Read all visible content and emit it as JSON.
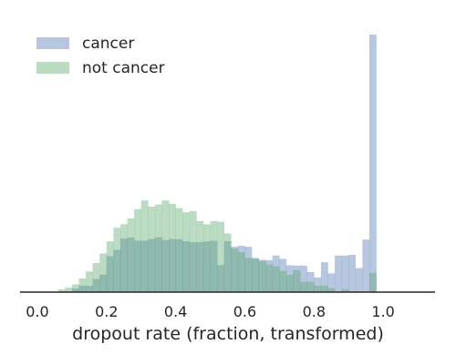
{
  "chart_data": {
    "type": "histogram",
    "title": "",
    "xlabel": "dropout rate (fraction, transformed)",
    "ylabel": "",
    "xlim": [
      -0.05,
      1.15
    ],
    "ylim": [
      0,
      1.0
    ],
    "xticks": [
      "0.0",
      "0.2",
      "0.4",
      "0.6",
      "0.8",
      "1.0"
    ],
    "grid": false,
    "legend_position": "top-left",
    "bin_width": 0.02,
    "bins_start": [
      0.06,
      0.08,
      0.1,
      0.12,
      0.14,
      0.16,
      0.18,
      0.2,
      0.22,
      0.24,
      0.26,
      0.28,
      0.3,
      0.32,
      0.34,
      0.36,
      0.38,
      0.4,
      0.42,
      0.44,
      0.46,
      0.48,
      0.5,
      0.52,
      0.54,
      0.56,
      0.58,
      0.6,
      0.62,
      0.64,
      0.66,
      0.68,
      0.7,
      0.72,
      0.74,
      0.76,
      0.78,
      0.8,
      0.82,
      0.84,
      0.86,
      0.88,
      0.9,
      0.92,
      0.94,
      0.96,
      0.98,
      1.0
    ],
    "series": [
      {
        "name": "cancer",
        "color": "#4c72b0",
        "opacity": 0.4,
        "values": [
          0.0,
          0.0,
          0.014,
          0.025,
          0.025,
          0.051,
          0.068,
          0.14,
          0.164,
          0.208,
          0.212,
          0.2,
          0.2,
          0.206,
          0.213,
          0.202,
          0.206,
          0.205,
          0.197,
          0.194,
          0.194,
          0.197,
          0.2,
          0.105,
          0.198,
          0.176,
          0.18,
          0.176,
          0.133,
          0.126,
          0.124,
          0.142,
          0.129,
          0.104,
          0.103,
          0.103,
          0.078,
          0.057,
          0.116,
          0.073,
          0.142,
          0.142,
          0.145,
          0.093,
          0.204,
          1.0,
          0.0,
          0.0
        ]
      },
      {
        "name": "not cancer",
        "color": "#55a868",
        "opacity": 0.4,
        "values": [
          0.011,
          0.018,
          0.03,
          0.053,
          0.08,
          0.113,
          0.15,
          0.197,
          0.25,
          0.264,
          0.286,
          0.322,
          0.356,
          0.332,
          0.34,
          0.356,
          0.343,
          0.326,
          0.31,
          0.315,
          0.276,
          0.263,
          0.276,
          0.273,
          0.228,
          0.169,
          0.156,
          0.133,
          0.129,
          0.12,
          0.108,
          0.1,
          0.082,
          0.068,
          0.085,
          0.04,
          0.04,
          0.025,
          0.025,
          0.015,
          0.0,
          0.012,
          0.0,
          0.0,
          0.0,
          0.075,
          0.0,
          0.0
        ]
      }
    ]
  }
}
